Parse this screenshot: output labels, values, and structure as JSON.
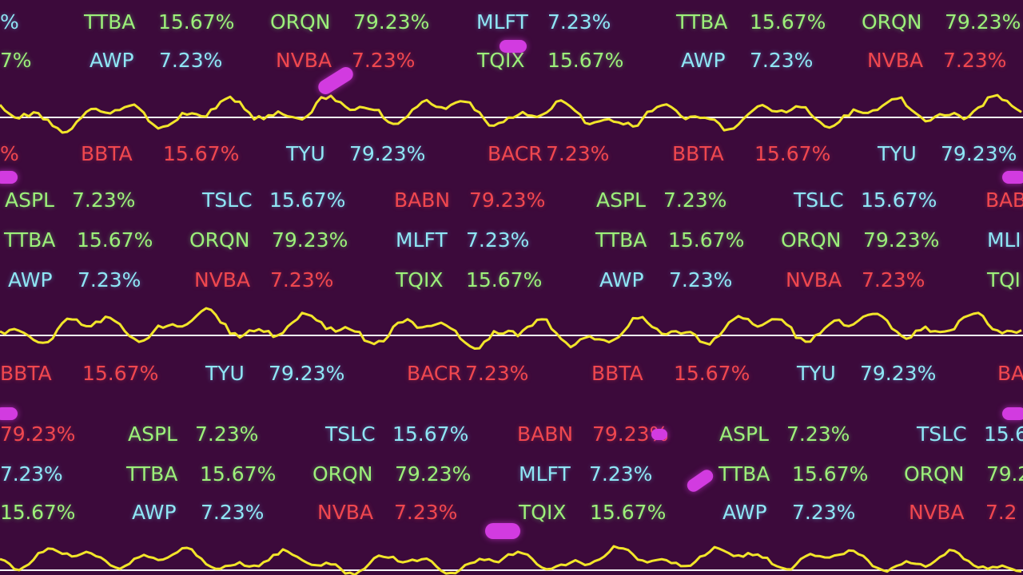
{
  "colors": {
    "background": "#3c0a3b",
    "green": "#9df07a",
    "cyan": "#8fe6f5",
    "red": "#f0474f",
    "line": "#f2e52a",
    "axis": "#f4f4f4",
    "blob": "#d23be0"
  },
  "tickers": {
    "TTBA": "15.67%",
    "ORQN": "79.23%",
    "MLFT": "7.23%",
    "AWP": "7.23%",
    "NVBA": "7.23%",
    "TQIX": "15.67%",
    "BBTA": "15.67%",
    "TYU": "79.23%",
    "BACR": "7.23%",
    "ASPL": "7.23%",
    "TSLC": "15.67%",
    "BABN": "79.23%"
  },
  "edge_fragments": {
    "row1_left": "%",
    "row2_left": "7%",
    "row3_left": "%",
    "row8_left": "79.23%",
    "row9_left": "7.23%",
    "row10_left": "15.67%",
    "row4_right": "BAB",
    "row5_right": "MLI",
    "row6_right": "TQI",
    "row7_right": "BA",
    "row8_right": "15.6",
    "row9_right": "79.2",
    "row10_right": "NVBA",
    "row10_right_val": "7.2"
  }
}
